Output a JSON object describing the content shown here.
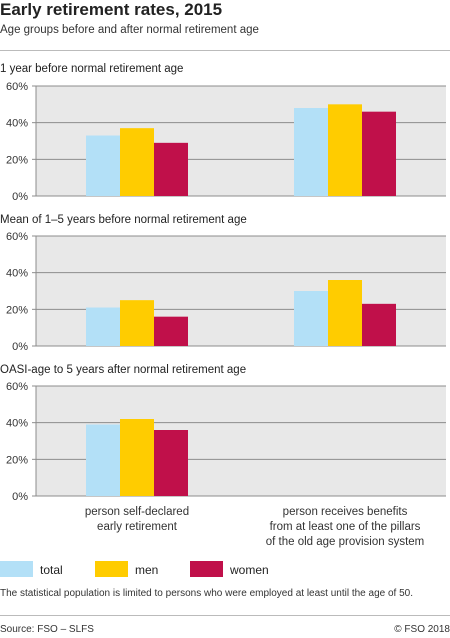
{
  "title": "Early retirement rates, 2015",
  "subtitle": "Age groups before and after normal retirement age",
  "footnote": "The statistical population is limited to persons who were employed at least until the age of 50.",
  "source": "Source: FSO – SLFS",
  "copyright": "© FSO 2018",
  "colors": {
    "total": "#b3e0f7",
    "men": "#ffcc00",
    "women": "#c0104a",
    "plot_bg": "#e8e8e8",
    "grid": "#8c8c8c"
  },
  "category_labels": [
    [
      "person self-declared",
      "early retirement"
    ],
    [
      "person receives benefits",
      "from at least one of the pillars",
      "of the old age provision system"
    ]
  ],
  "legend": [
    "total",
    "men",
    "women"
  ],
  "chart_data": [
    {
      "type": "bar",
      "title": "1 year before normal retirement age",
      "categories": [
        "person self-declared early retirement",
        "person receives benefits from at least one of the pillars of the old age provision system"
      ],
      "series": [
        {
          "name": "total",
          "values": [
            33,
            48
          ]
        },
        {
          "name": "men",
          "values": [
            37,
            50
          ]
        },
        {
          "name": "women",
          "values": [
            29,
            46
          ]
        }
      ],
      "ylim": [
        0,
        60
      ],
      "yticks": [
        "0%",
        "20%",
        "40%",
        "60%"
      ],
      "grid": true
    },
    {
      "type": "bar",
      "title": "Mean of 1–5 years before normal retirement age",
      "categories": [
        "person self-declared early retirement",
        "person receives benefits from at least one of the pillars of the old age provision system"
      ],
      "series": [
        {
          "name": "total",
          "values": [
            21,
            30
          ]
        },
        {
          "name": "men",
          "values": [
            25,
            36
          ]
        },
        {
          "name": "women",
          "values": [
            16,
            23
          ]
        }
      ],
      "ylim": [
        0,
        60
      ],
      "yticks": [
        "0%",
        "20%",
        "40%",
        "60%"
      ],
      "grid": true
    },
    {
      "type": "bar",
      "title": "OASI-age to 5 years after normal retirement age",
      "categories": [
        "person self-declared early retirement",
        "person receives benefits from at least one of the pillars of the old age provision system"
      ],
      "series": [
        {
          "name": "total",
          "values": [
            39,
            null
          ]
        },
        {
          "name": "men",
          "values": [
            42,
            null
          ]
        },
        {
          "name": "women",
          "values": [
            36,
            null
          ]
        }
      ],
      "ylim": [
        0,
        60
      ],
      "yticks": [
        "0%",
        "20%",
        "40%",
        "60%"
      ],
      "grid": true
    }
  ]
}
